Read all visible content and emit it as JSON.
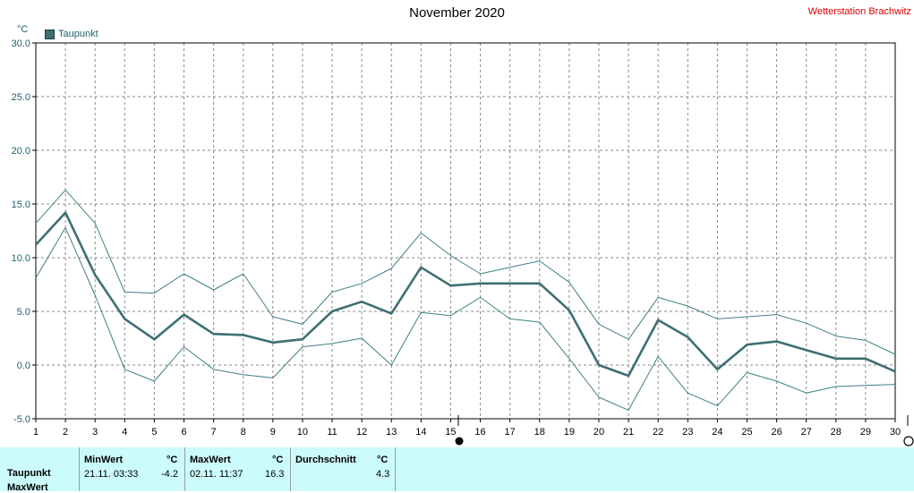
{
  "title": "November 2020",
  "station": "Wetterstation Brachwitz",
  "unit": "°C",
  "colors": {
    "line": "#3e6f73",
    "thin": "#3f7f84",
    "grid": "#8a8a8a",
    "panel": "#ccfbfb",
    "station": "#e00000"
  },
  "chart_data": {
    "type": "line",
    "x": [
      1,
      2,
      3,
      4,
      5,
      6,
      7,
      8,
      9,
      10,
      11,
      12,
      13,
      14,
      15,
      16,
      17,
      18,
      19,
      20,
      21,
      22,
      23,
      24,
      25,
      26,
      27,
      28,
      29,
      30
    ],
    "ylim": [
      -5,
      30
    ],
    "yticks": [
      "30.0",
      "25.0",
      "20.0",
      "15.0",
      "10.0",
      "5.0",
      "0.0",
      "-5.0"
    ],
    "xticks": [
      "1",
      "2",
      "3",
      "4",
      "5",
      "6",
      "7",
      "8",
      "9",
      "10",
      "11",
      "12",
      "13",
      "14",
      "15",
      "16",
      "17",
      "18",
      "19",
      "20",
      "21",
      "22",
      "23",
      "24",
      "25",
      "26",
      "27",
      "28",
      "29",
      "30"
    ],
    "grid": true,
    "legend": "top-left",
    "series": [
      {
        "name": "Taupunkt",
        "role": "mean",
        "values": [
          11.2,
          14.2,
          8.4,
          4.3,
          2.4,
          4.7,
          2.9,
          2.8,
          2.1,
          2.4,
          5.0,
          5.9,
          4.8,
          9.1,
          7.4,
          7.6,
          7.6,
          7.6,
          5.1,
          0.0,
          -1.0,
          4.2,
          2.6,
          -0.4,
          1.9,
          2.2,
          1.4,
          0.6,
          0.6,
          -0.6
        ]
      },
      {
        "role": "max",
        "values": [
          13.2,
          16.3,
          13.2,
          6.8,
          6.7,
          8.5,
          7.0,
          8.5,
          4.5,
          3.8,
          6.8,
          7.6,
          9.0,
          12.3,
          10.2,
          8.5,
          9.1,
          9.7,
          7.7,
          3.8,
          2.4,
          6.3,
          5.5,
          4.3,
          4.5,
          4.7,
          3.9,
          2.7,
          2.3,
          1.0
        ]
      },
      {
        "role": "min",
        "values": [
          8.1,
          12.8,
          6.5,
          -0.4,
          -1.5,
          1.7,
          -0.4,
          -0.9,
          -1.2,
          1.7,
          2.0,
          2.5,
          0.0,
          4.9,
          4.6,
          6.3,
          4.3,
          4.0,
          0.6,
          -3.0,
          -4.2,
          0.8,
          -2.6,
          -3.8,
          -0.7,
          -1.5,
          -2.6,
          -2.0,
          -1.9,
          -1.8
        ]
      }
    ]
  },
  "stats": {
    "row_label": "Taupunkt",
    "row_label2": "MaxWert",
    "min_header": "MinWert",
    "min_unit": "°C",
    "min_time": "21.11.  03:33",
    "min_value": "-4.2",
    "max_header": "MaxWert",
    "max_unit": "°C",
    "max_time": "02.11.  11:37",
    "max_value": "16.3",
    "avg_header": "Durchschnitt",
    "avg_unit": "°C",
    "avg_value": "4.3"
  }
}
